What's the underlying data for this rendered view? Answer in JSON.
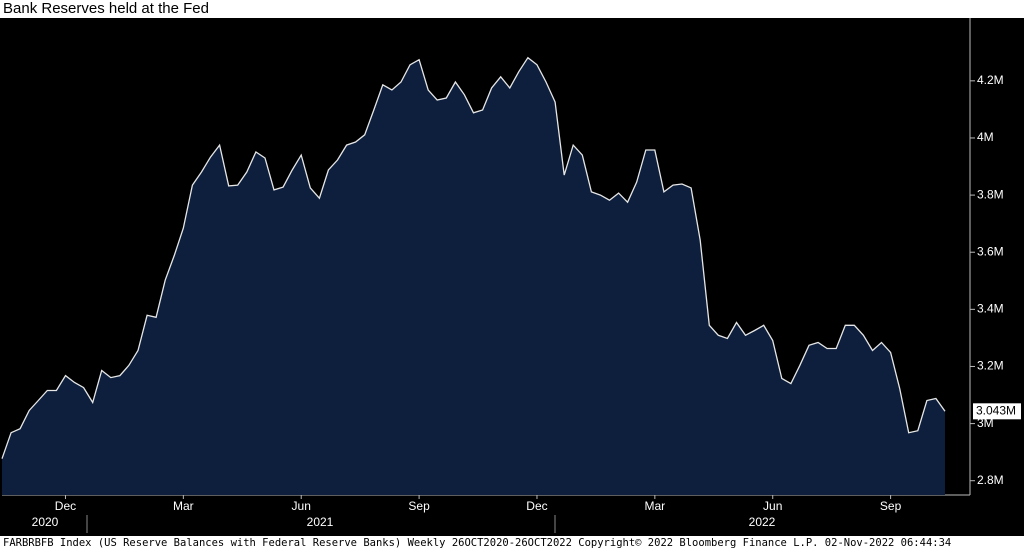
{
  "chart_data": {
    "type": "area",
    "title": "Bank Reserves held at the Fed",
    "footer": "FARBRBFB Index (US Reserve Balances with Federal Reserve Banks)  Weekly 26OCT2020-26OCT2022 Copyright© 2022 Bloomberg Finance L.P. 02-Nov-2022 06:44:34",
    "categories": [
      null,
      null,
      null,
      null,
      null,
      null,
      null,
      "Dec",
      null,
      null,
      null,
      null,
      null,
      null,
      null,
      null,
      null,
      null,
      null,
      null,
      "Mar",
      null,
      null,
      null,
      null,
      null,
      null,
      null,
      null,
      null,
      null,
      null,
      null,
      "Jun",
      null,
      null,
      null,
      null,
      null,
      null,
      null,
      null,
      null,
      null,
      null,
      null,
      "Sep",
      null,
      null,
      null,
      null,
      null,
      null,
      null,
      null,
      null,
      null,
      null,
      null,
      "Dec",
      null,
      null,
      null,
      null,
      null,
      null,
      null,
      null,
      null,
      null,
      null,
      null,
      "Mar",
      null,
      null,
      null,
      null,
      null,
      null,
      null,
      null,
      null,
      null,
      null,
      null,
      "Jun",
      null,
      null,
      null,
      null,
      null,
      null,
      null,
      null,
      null,
      null,
      null,
      null,
      "Sep",
      null,
      null,
      null,
      null,
      null,
      null
    ],
    "years": [
      "2020",
      "2021",
      "2022"
    ],
    "values": [
      2.877,
      2.968,
      2.982,
      3.046,
      3.081,
      3.116,
      3.116,
      3.168,
      3.144,
      3.126,
      3.074,
      3.186,
      3.161,
      3.168,
      3.204,
      3.256,
      3.379,
      3.372,
      3.502,
      3.589,
      3.684,
      3.835,
      3.881,
      3.933,
      3.975,
      3.832,
      3.835,
      3.881,
      3.951,
      3.93,
      3.818,
      3.828,
      3.888,
      3.94,
      3.825,
      3.789,
      3.888,
      3.923,
      3.975,
      3.986,
      4.011,
      4.098,
      4.186,
      4.168,
      4.196,
      4.256,
      4.274,
      4.168,
      4.133,
      4.14,
      4.196,
      4.151,
      4.088,
      4.098,
      4.175,
      4.214,
      4.175,
      4.232,
      4.281,
      4.256,
      4.196,
      4.126,
      3.87,
      3.975,
      3.94,
      3.811,
      3.8,
      3.782,
      3.807,
      3.775,
      3.846,
      3.958,
      3.958,
      3.811,
      3.835,
      3.839,
      3.825,
      3.642,
      3.344,
      3.309,
      3.298,
      3.354,
      3.309,
      3.326,
      3.344,
      3.291,
      3.158,
      3.14,
      3.204,
      3.274,
      3.284,
      3.263,
      3.263,
      3.344,
      3.344,
      3.309,
      3.256,
      3.284,
      3.249,
      3.123,
      2.968,
      2.975,
      3.081,
      3.088,
      3.043
    ],
    "last_value_label": "3.043M",
    "color": "#0d1f3c",
    "line_color": "#e6e6e6",
    "ylim": [
      2.75,
      4.42
    ],
    "yticks": [
      {
        "value": 2.8,
        "label": "2.8M"
      },
      {
        "value": 3,
        "label": "3M"
      },
      {
        "value": 3.2,
        "label": "3.2M"
      },
      {
        "value": 3.4,
        "label": "3.4M"
      },
      {
        "value": 3.6,
        "label": "3.6M"
      },
      {
        "value": 3.8,
        "label": "3.8M"
      },
      {
        "value": 4,
        "label": "4M"
      },
      {
        "value": 4.2,
        "label": "4.2M"
      }
    ]
  }
}
